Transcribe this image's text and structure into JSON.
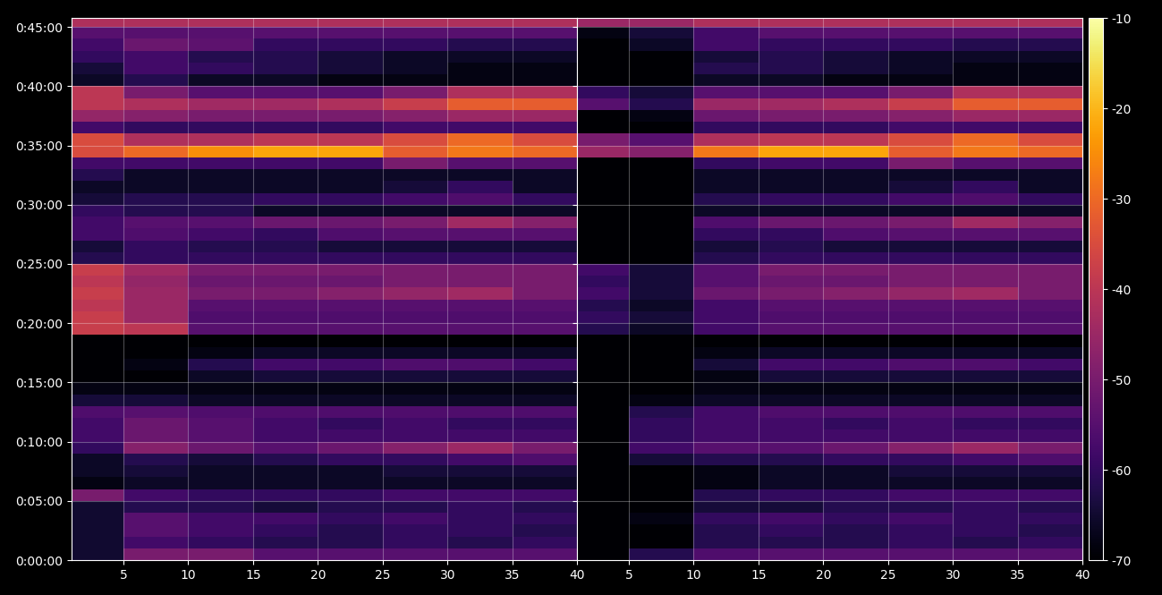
{
  "chart_data": [
    {
      "type": "heatmap",
      "grid": true,
      "xlim": [
        1,
        40
      ],
      "xticks": [
        5,
        10,
        15,
        20,
        25,
        30,
        35,
        40
      ],
      "ylim": [
        0,
        2745
      ],
      "yticks": [
        {
          "value": 0,
          "label": "0:00:00"
        },
        {
          "value": 300,
          "label": "0:05:00"
        },
        {
          "value": 600,
          "label": "0:10:00"
        },
        {
          "value": 900,
          "label": "0:15:00"
        },
        {
          "value": 1200,
          "label": "0:20:00"
        },
        {
          "value": 1500,
          "label": "0:25:00"
        },
        {
          "value": 1800,
          "label": "0:30:00"
        },
        {
          "value": 2100,
          "label": "0:35:00"
        },
        {
          "value": 2400,
          "label": "0:40:00"
        },
        {
          "value": 2700,
          "label": "0:45:00"
        }
      ],
      "x_edges": [
        1,
        5,
        10,
        15,
        20,
        25,
        30,
        35,
        40
      ],
      "y_edges": [
        0,
        60,
        120,
        180,
        240,
        300,
        360,
        420,
        480,
        540,
        600,
        660,
        720,
        780,
        840,
        900,
        960,
        1020,
        1080,
        1140,
        1200,
        1260,
        1320,
        1380,
        1440,
        1500,
        1560,
        1620,
        1680,
        1740,
        1800,
        1860,
        1920,
        1980,
        2040,
        2100,
        2160,
        2220,
        2280,
        2340,
        2400,
        2460,
        2520,
        2580,
        2640,
        2700,
        2760
      ],
      "cells": [
        [
          -65,
          -50,
          -50,
          -55,
          -55,
          -55,
          -55,
          -55
        ],
        [
          -65,
          -58,
          -60,
          -62,
          -62,
          -60,
          -62,
          -60
        ],
        [
          -65,
          -55,
          -58,
          -60,
          -62,
          -60,
          -60,
          -62
        ],
        [
          -65,
          -55,
          -58,
          -58,
          -60,
          -58,
          -60,
          -60
        ],
        [
          -65,
          -62,
          -62,
          -64,
          -62,
          -62,
          -60,
          -62
        ],
        [
          -50,
          -58,
          -60,
          -60,
          -60,
          -58,
          -58,
          -58
        ],
        [
          -68,
          -66,
          -66,
          -66,
          -66,
          -66,
          -66,
          -66
        ],
        [
          -66,
          -64,
          -66,
          -66,
          -66,
          -64,
          -64,
          -64
        ],
        [
          -66,
          -62,
          -64,
          -62,
          -60,
          -60,
          -58,
          -56
        ],
        [
          -60,
          -48,
          -52,
          -55,
          -52,
          -48,
          -45,
          -50
        ],
        [
          -58,
          -52,
          -55,
          -58,
          -58,
          -58,
          -58,
          -58
        ],
        [
          -58,
          -52,
          -55,
          -58,
          -60,
          -58,
          -60,
          -60
        ],
        [
          -56,
          -55,
          -56,
          -56,
          -56,
          -56,
          -56,
          -56
        ],
        [
          -64,
          -64,
          -66,
          -66,
          -66,
          -66,
          -66,
          -66
        ],
        [
          -68,
          -68,
          -68,
          -68,
          -68,
          -68,
          -68,
          -68
        ],
        [
          -70,
          -70,
          -66,
          -64,
          -64,
          -64,
          -64,
          -64
        ],
        [
          -70,
          -68,
          -62,
          -58,
          -58,
          -56,
          -56,
          -58
        ],
        [
          -70,
          -70,
          -68,
          -66,
          -66,
          -66,
          -66,
          -66
        ],
        [
          -70,
          -70,
          -70,
          -70,
          -70,
          -70,
          -70,
          -70
        ],
        [
          -38,
          -40,
          -55,
          -55,
          -55,
          -55,
          -55,
          -55
        ],
        [
          -38,
          -45,
          -56,
          -56,
          -56,
          -56,
          -56,
          -56
        ],
        [
          -40,
          -45,
          -55,
          -55,
          -55,
          -55,
          -55,
          -55
        ],
        [
          -38,
          -45,
          -50,
          -50,
          -48,
          -46,
          -44,
          -50
        ],
        [
          -40,
          -46,
          -52,
          -52,
          -52,
          -50,
          -50,
          -50
        ],
        [
          -38,
          -44,
          -50,
          -50,
          -50,
          -50,
          -50,
          -50
        ],
        [
          -62,
          -60,
          -60,
          -60,
          -60,
          -60,
          -60,
          -60
        ],
        [
          -64,
          -60,
          -62,
          -62,
          -64,
          -64,
          -64,
          -64
        ],
        [
          -58,
          -56,
          -58,
          -60,
          -56,
          -55,
          -55,
          -55
        ],
        [
          -58,
          -55,
          -55,
          -52,
          -52,
          -50,
          -44,
          -48
        ],
        [
          -60,
          -62,
          -62,
          -66,
          -66,
          -66,
          -66,
          -66
        ],
        [
          -64,
          -62,
          -62,
          -60,
          -60,
          -58,
          -56,
          -60
        ],
        [
          -66,
          -66,
          -66,
          -66,
          -66,
          -64,
          -60,
          -66
        ],
        [
          -62,
          -66,
          -66,
          -66,
          -66,
          -66,
          -66,
          -66
        ],
        [
          -58,
          -58,
          -58,
          -58,
          -58,
          -50,
          -55,
          -55
        ],
        [
          -35,
          -30,
          -25,
          -22,
          -22,
          -32,
          -28,
          -30
        ],
        [
          -35,
          -42,
          -42,
          -40,
          -40,
          -35,
          -30,
          -35
        ],
        [
          -58,
          -60,
          -60,
          -60,
          -60,
          -58,
          -58,
          -58
        ],
        [
          -46,
          -48,
          -50,
          -50,
          -50,
          -48,
          -45,
          -45
        ],
        [
          -40,
          -42,
          -44,
          -44,
          -42,
          -38,
          -32,
          -32
        ],
        [
          -40,
          -50,
          -55,
          -55,
          -55,
          -50,
          -42,
          -42
        ],
        [
          -66,
          -62,
          -66,
          -66,
          -68,
          -68,
          -68,
          -68
        ],
        [
          -64,
          -58,
          -60,
          -62,
          -64,
          -66,
          -68,
          -68
        ],
        [
          -60,
          -58,
          -62,
          -62,
          -64,
          -66,
          -66,
          -66
        ],
        [
          -58,
          -52,
          -54,
          -60,
          -60,
          -60,
          -62,
          -62
        ],
        [
          -55,
          -55,
          -55,
          -55,
          -55,
          -55,
          -55,
          -55
        ],
        [
          -42,
          -42,
          -42,
          -42,
          -42,
          -42,
          -42,
          -42
        ]
      ]
    },
    {
      "type": "heatmap",
      "grid": true,
      "tick_labels": "x",
      "xlim": [
        1,
        40
      ],
      "xticks": [
        5,
        10,
        15,
        20,
        25,
        30,
        35,
        40
      ],
      "ylim": [
        0,
        2745
      ],
      "yticks": [
        0,
        300,
        600,
        900,
        1200,
        1500,
        1800,
        2100,
        2400,
        2700
      ],
      "x_edges": [
        1,
        5,
        10,
        15,
        20,
        25,
        30,
        35,
        40
      ],
      "y_edges": [
        0,
        60,
        120,
        180,
        240,
        300,
        360,
        420,
        480,
        540,
        600,
        660,
        720,
        780,
        840,
        900,
        960,
        1020,
        1080,
        1140,
        1200,
        1260,
        1320,
        1380,
        1440,
        1500,
        1560,
        1620,
        1680,
        1740,
        1800,
        1860,
        1920,
        1980,
        2040,
        2100,
        2160,
        2220,
        2280,
        2340,
        2400,
        2460,
        2520,
        2580,
        2640,
        2700,
        2760
      ],
      "cells": [
        [
          -70,
          -62,
          -56,
          -55,
          -55,
          -55,
          -55,
          -55
        ],
        [
          -70,
          -70,
          -62,
          -62,
          -62,
          -60,
          -62,
          -60
        ],
        [
          -70,
          -70,
          -62,
          -60,
          -62,
          -60,
          -60,
          -62
        ],
        [
          -70,
          -68,
          -60,
          -58,
          -60,
          -58,
          -60,
          -60
        ],
        [
          -70,
          -70,
          -64,
          -64,
          -62,
          -62,
          -60,
          -62
        ],
        [
          -70,
          -70,
          -62,
          -60,
          -60,
          -58,
          -58,
          -58
        ],
        [
          -70,
          -70,
          -68,
          -66,
          -66,
          -66,
          -66,
          -66
        ],
        [
          -70,
          -70,
          -68,
          -66,
          -66,
          -64,
          -64,
          -64
        ],
        [
          -70,
          -64,
          -62,
          -62,
          -60,
          -60,
          -58,
          -56
        ],
        [
          -70,
          -58,
          -55,
          -55,
          -52,
          -48,
          -45,
          -50
        ],
        [
          -70,
          -60,
          -58,
          -58,
          -58,
          -58,
          -58,
          -58
        ],
        [
          -70,
          -60,
          -58,
          -58,
          -60,
          -58,
          -60,
          -60
        ],
        [
          -70,
          -62,
          -58,
          -56,
          -56,
          -56,
          -56,
          -56
        ],
        [
          -70,
          -68,
          -66,
          -66,
          -66,
          -66,
          -66,
          -66
        ],
        [
          -70,
          -70,
          -68,
          -68,
          -68,
          -68,
          -68,
          -68
        ],
        [
          -70,
          -70,
          -68,
          -64,
          -64,
          -64,
          -64,
          -64
        ],
        [
          -70,
          -70,
          -64,
          -58,
          -58,
          -56,
          -56,
          -58
        ],
        [
          -70,
          -70,
          -68,
          -66,
          -66,
          -66,
          -66,
          -66
        ],
        [
          -70,
          -70,
          -70,
          -70,
          -70,
          -70,
          -70,
          -70
        ],
        [
          -62,
          -66,
          -58,
          -55,
          -55,
          -55,
          -55,
          -55
        ],
        [
          -60,
          -64,
          -58,
          -56,
          -56,
          -56,
          -56,
          -56
        ],
        [
          -62,
          -66,
          -58,
          -55,
          -55,
          -55,
          -55,
          -55
        ],
        [
          -58,
          -64,
          -52,
          -50,
          -48,
          -46,
          -44,
          -50
        ],
        [
          -60,
          -64,
          -55,
          -52,
          -52,
          -50,
          -50,
          -50
        ],
        [
          -58,
          -64,
          -55,
          -50,
          -50,
          -50,
          -50,
          -50
        ],
        [
          -70,
          -70,
          -62,
          -60,
          -60,
          -60,
          -60,
          -60
        ],
        [
          -70,
          -70,
          -64,
          -62,
          -64,
          -64,
          -64,
          -64
        ],
        [
          -70,
          -70,
          -60,
          -60,
          -56,
          -55,
          -55,
          -55
        ],
        [
          -70,
          -70,
          -56,
          -52,
          -52,
          -50,
          -44,
          -48
        ],
        [
          -70,
          -70,
          -66,
          -66,
          -66,
          -66,
          -66,
          -66
        ],
        [
          -70,
          -70,
          -62,
          -60,
          -60,
          -58,
          -56,
          -60
        ],
        [
          -70,
          -70,
          -66,
          -66,
          -66,
          -64,
          -60,
          -66
        ],
        [
          -70,
          -70,
          -66,
          -66,
          -66,
          -66,
          -66,
          -66
        ],
        [
          -70,
          -70,
          -60,
          -58,
          -58,
          -50,
          -55,
          -55
        ],
        [
          -45,
          -48,
          -28,
          -22,
          -22,
          -32,
          -28,
          -30
        ],
        [
          -50,
          -55,
          -42,
          -40,
          -40,
          -35,
          -30,
          -35
        ],
        [
          -70,
          -70,
          -60,
          -60,
          -60,
          -58,
          -58,
          -58
        ],
        [
          -70,
          -68,
          -52,
          -50,
          -50,
          -48,
          -45,
          -45
        ],
        [
          -55,
          -62,
          -45,
          -44,
          -42,
          -38,
          -32,
          -32
        ],
        [
          -60,
          -64,
          -55,
          -55,
          -55,
          -50,
          -42,
          -42
        ],
        [
          -70,
          -70,
          -66,
          -66,
          -68,
          -68,
          -68,
          -68
        ],
        [
          -70,
          -70,
          -62,
          -62,
          -64,
          -66,
          -68,
          -68
        ],
        [
          -70,
          -70,
          -64,
          -62,
          -64,
          -66,
          -66,
          -66
        ],
        [
          -70,
          -66,
          -58,
          -60,
          -60,
          -60,
          -62,
          -62
        ],
        [
          -68,
          -64,
          -58,
          -55,
          -55,
          -55,
          -55,
          -55
        ],
        [
          -45,
          -45,
          -42,
          -42,
          -42,
          -42,
          -42,
          -42
        ]
      ],
      "colorbar": {
        "range": [
          -70,
          -10
        ],
        "ticks": [
          -70,
          -60,
          -50,
          -40,
          -30,
          -20,
          -10
        ]
      }
    }
  ]
}
